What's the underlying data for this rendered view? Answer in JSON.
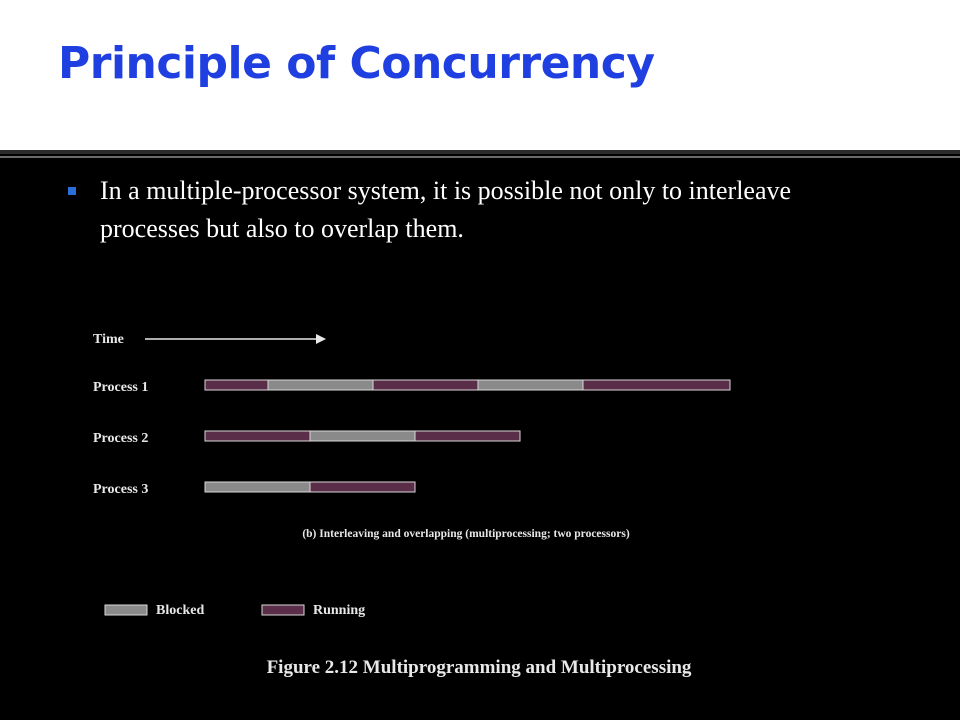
{
  "slide": {
    "title": "Principle of Concurrency",
    "bullet": "In a multiple-processor system, it is possible not only to interleave processes but also to overlap them."
  },
  "diagram": {
    "time_label": "Time",
    "subcaption": "(b) Interleaving and overlapping (multiprocessing; two processors)",
    "figure_caption": "Figure 2.12 Multiprogramming and Multiprocessing",
    "legend": [
      {
        "state": "blocked",
        "label": "Blocked"
      },
      {
        "state": "running",
        "label": "Running"
      }
    ],
    "processes": [
      {
        "label": "Process 1",
        "segments": [
          {
            "state": "running",
            "length": 0.6
          },
          {
            "state": "blocked",
            "length": 1
          },
          {
            "state": "running",
            "length": 1
          },
          {
            "state": "blocked",
            "length": 1
          },
          {
            "state": "running",
            "length": 1.4
          }
        ]
      },
      {
        "label": "Process 2",
        "segments": [
          {
            "state": "running",
            "length": 1
          },
          {
            "state": "blocked",
            "length": 1
          },
          {
            "state": "running",
            "length": 1
          }
        ]
      },
      {
        "label": "Process 3",
        "segments": [
          {
            "state": "blocked",
            "length": 1
          },
          {
            "state": "running",
            "length": 1
          }
        ]
      }
    ],
    "colors": {
      "running": "#5a2e48",
      "blocked": "#8a8a8a",
      "border": "#d8d8d8",
      "text": "#e8e8e8"
    }
  }
}
